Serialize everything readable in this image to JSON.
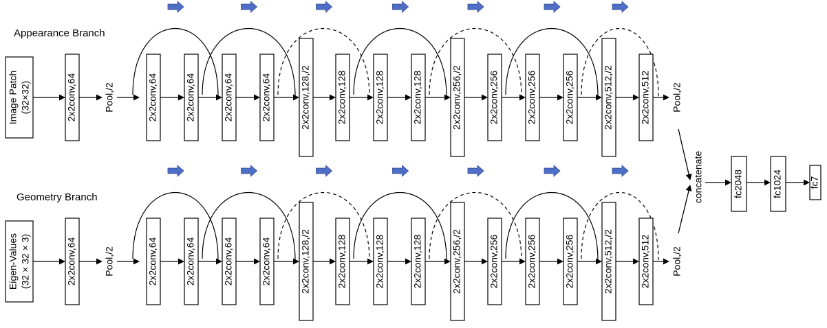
{
  "colors": {
    "arrow_block": "#4f6fc6",
    "arrow_block_stroke": "#2f4a93",
    "line": "#000000"
  },
  "diagram": {
    "branches": [
      {
        "title": "Appearance Branch",
        "input_lines": [
          "Image Patch",
          "(32×32)"
        ],
        "pool_in": "Pool,/2",
        "pool_out": "Pool,/2"
      },
      {
        "title": "Geometry Branch",
        "input_lines": [
          "Eigen-Values",
          "(32 × 32 × 3)"
        ],
        "pool_in": "Pool,/2",
        "pool_out": "Pool,/2"
      }
    ],
    "first_conv": "2x2conv,64",
    "layers": [
      "2x2conv,64",
      "2x2conv,64",
      "2x2conv,64",
      "2x2conv,64",
      "2x2conv,128,/2",
      "2x2conv,128",
      "2x2conv,128",
      "2x2conv,128",
      "2x2conv,256,/2",
      "2x2conv,256",
      "2x2conv,256",
      "2x2conv,256",
      "2x2conv,512,/2",
      "2x2conv,512"
    ],
    "skip_styles": [
      "solid",
      "solid",
      "dashed",
      "solid",
      "dashed",
      "solid",
      "dashed"
    ],
    "concat_label": "concatenate",
    "fc_layers": [
      "fc2048",
      "fc1024",
      "fc7"
    ]
  }
}
